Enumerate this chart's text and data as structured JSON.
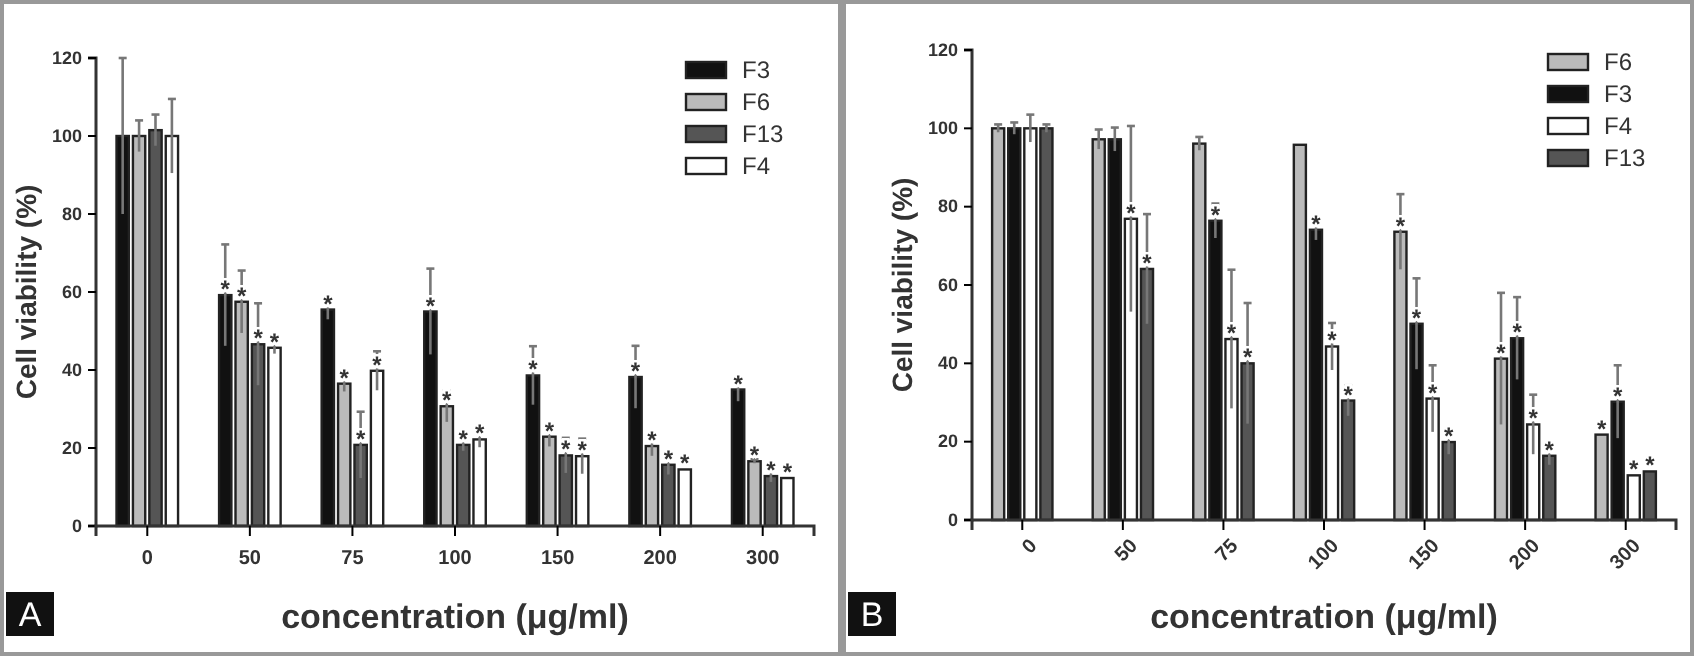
{
  "chart_data": [
    {
      "type": "bar",
      "xlabel": "concentration (μg/ml)",
      "ylabel": "Cell viability (%)",
      "categories": [
        "0",
        "50",
        "75",
        "100",
        "150",
        "200",
        "300"
      ],
      "ylim": [
        0,
        120
      ],
      "yticks": [
        0,
        20,
        40,
        60,
        80,
        100,
        120
      ],
      "legend": "top right",
      "annotations": [
        "A"
      ],
      "series": [
        {
          "name": "F3",
          "color": "#111111",
          "values": [
            100,
            59.2,
            55.5,
            55,
            38.6,
            38.2,
            35
          ],
          "errors": [
            20,
            13,
            2.5,
            11,
            7.5,
            8,
            3
          ],
          "value_labels": [
            null,
            "*",
            "*",
            "*",
            "*",
            "*",
            "*"
          ]
        },
        {
          "name": "F6",
          "color": "#bbbbbb",
          "values": [
            100,
            57.5,
            36.5,
            30.7,
            22.9,
            20.5,
            16.6
          ],
          "errors": [
            4,
            8,
            2,
            4,
            2.5,
            2.5,
            0.5
          ],
          "value_labels": [
            null,
            "*",
            "*",
            "*",
            "*",
            "*",
            "*"
          ]
        },
        {
          "name": "F13",
          "color": "#555555",
          "values": [
            101.5,
            46.6,
            20.8,
            20.8,
            18.1,
            15.7,
            12.8
          ],
          "errors": [
            4,
            10.5,
            8.5,
            1.5,
            4.5,
            2.5,
            1.5
          ],
          "value_labels": [
            null,
            "*",
            "*",
            "*",
            "*",
            "*",
            "*"
          ]
        },
        {
          "name": "F4",
          "color": "#ffffff",
          "values": [
            100,
            45.7,
            39.8,
            22.2,
            17.9,
            14.5,
            12.3
          ],
          "errors": [
            9.5,
            1.5,
            5,
            2,
            4.5,
            null,
            null
          ],
          "value_labels": [
            null,
            "*",
            "*",
            "*",
            "*",
            "*",
            "*"
          ]
        }
      ]
    },
    {
      "type": "bar",
      "xlabel": "concentration (μg/ml)",
      "ylabel": "Cell viability (%)",
      "categories": [
        "0",
        "50",
        "75",
        "100",
        "150",
        "200",
        "300"
      ],
      "ylim": [
        0,
        120
      ],
      "yticks": [
        0,
        20,
        40,
        60,
        80,
        100,
        120
      ],
      "legend": "top right",
      "annotations": [
        "B"
      ],
      "series": [
        {
          "name": "F6",
          "color": "#bbbbbb",
          "values": [
            100,
            97.2,
            96.1,
            95.8,
            73.6,
            41.2,
            21.8
          ],
          "errors": [
            1,
            2.5,
            1.7,
            null,
            9.6,
            16.8,
            null
          ],
          "value_labels": [
            null,
            null,
            null,
            null,
            "*",
            "*",
            "*"
          ]
        },
        {
          "name": "F3",
          "color": "#111111",
          "values": [
            100,
            97.2,
            76.4,
            74.1,
            50.1,
            46.4,
            30.2
          ],
          "errors": [
            1.5,
            3,
            4.4,
            2.6,
            11.6,
            10.5,
            9.3
          ],
          "value_labels": [
            null,
            null,
            "*",
            "*",
            "*",
            "*",
            "*"
          ]
        },
        {
          "name": "F4",
          "color": "#ffffff",
          "values": [
            100,
            76.9,
            46.2,
            44.3,
            31,
            24.4,
            11.4
          ],
          "errors": [
            3.5,
            23.7,
            17.7,
            6,
            8.5,
            7.6,
            null
          ],
          "value_labels": [
            null,
            "*",
            "*",
            "*",
            "*",
            "*",
            "*"
          ]
        },
        {
          "name": "F13",
          "color": "#555555",
          "values": [
            100,
            64.1,
            40,
            30.5,
            19.9,
            16.4,
            12.4
          ],
          "errors": [
            1,
            14,
            15.4,
            3.9,
            3.1,
            2.3,
            null
          ],
          "value_labels": [
            null,
            "*",
            "*",
            "*",
            "*",
            "*",
            "*"
          ]
        }
      ]
    }
  ]
}
